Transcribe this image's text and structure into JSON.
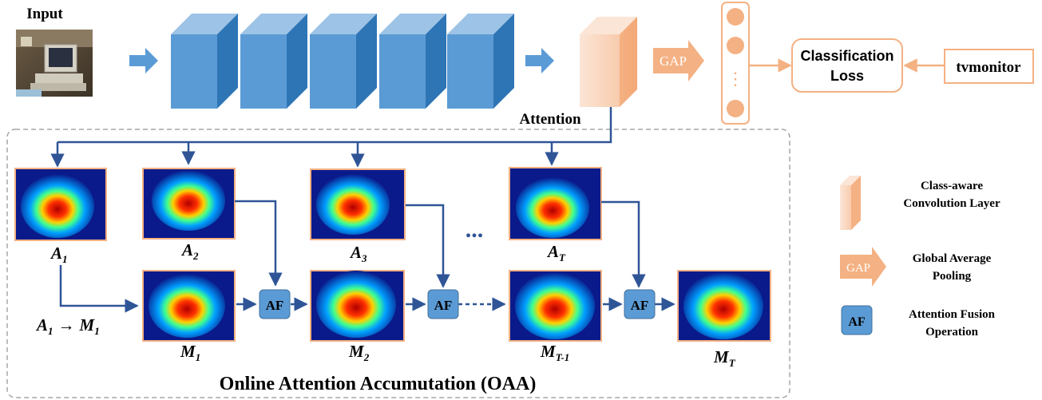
{
  "input_label": "Input",
  "attention_label": "Attention",
  "gap_label": "GAP",
  "loss": {
    "line1": "Classification",
    "line2": "Loss"
  },
  "class_label": "tvmonitor",
  "oaa_title": "Online Attention Accumutation (OAA)",
  "af_label": "AF",
  "ellipsis": "...",
  "vertical_ellipsis": "⋮",
  "attention_maps": [
    {
      "base": "A",
      "sub": "1"
    },
    {
      "base": "A",
      "sub": "2"
    },
    {
      "base": "A",
      "sub": "3"
    },
    {
      "base": "A",
      "sub": "T"
    }
  ],
  "accumulated_maps": [
    {
      "base": "M",
      "sub": "1"
    },
    {
      "base": "M",
      "sub": "2"
    },
    {
      "base": "M",
      "sub": "T-1"
    },
    {
      "base": "M",
      "sub": "T"
    }
  ],
  "init_label": {
    "a": "A",
    "a_sub": "1",
    "arrow": "→",
    "m": "M",
    "m_sub": "1"
  },
  "legend": {
    "conv": {
      "line1": "Class-aware",
      "line2": "Convolution Layer"
    },
    "gap": {
      "line1": "Global Average",
      "line2": "Pooling"
    },
    "af": {
      "line1": "Attention Fusion",
      "line2": "Operation"
    }
  },
  "colors": {
    "block_front": "#5b9bd5",
    "block_top": "#9dc3e6",
    "block_side": "#2e75b6",
    "attention_layer": "#f4b183",
    "arrow_blue": "#5b9bd5",
    "flow_line": "#2f5597",
    "af_box": "#5b9bd5",
    "orange_line": "#f4b183",
    "heatmap_border": "#f4b183"
  }
}
